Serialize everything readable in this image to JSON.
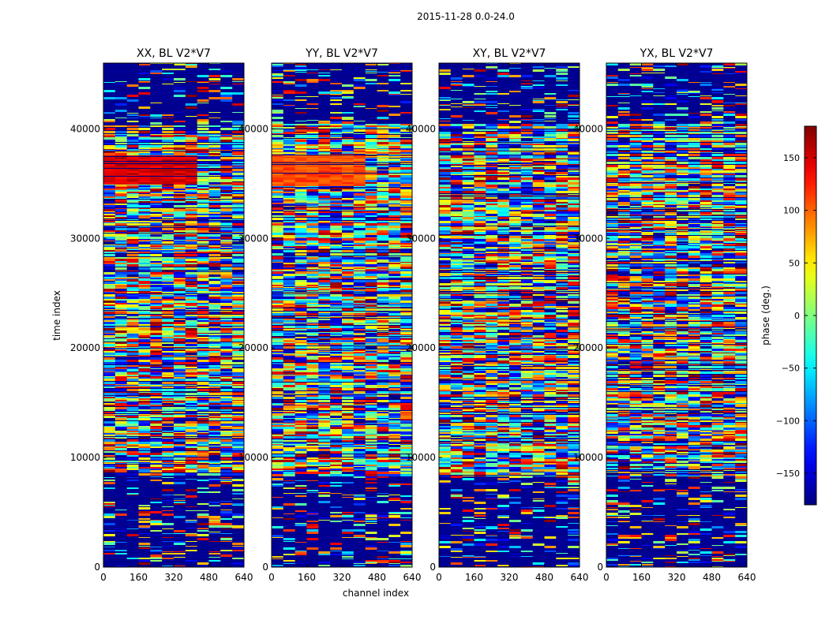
{
  "figure": {
    "suptitle": "2015-11-28 0.0-24.0"
  },
  "chart_data": {
    "type": "heatmap",
    "shared": {
      "xlabel": "channel index",
      "ylabel": "time index",
      "xlim": [
        0,
        640
      ],
      "ylim": [
        0,
        46000
      ],
      "xticks": [
        0,
        160,
        320,
        480,
        640
      ],
      "yticks": [
        0,
        10000,
        20000,
        30000,
        40000
      ]
    },
    "panels": [
      {
        "title": "XX, BL V2*V7"
      },
      {
        "title": "YY, BL V2*V7"
      },
      {
        "title": "XY, BL V2*V7"
      },
      {
        "title": "YX, BL V2*V7"
      }
    ],
    "colorbar": {
      "label": "phase (deg.)",
      "range": [
        -180,
        180
      ],
      "ticks": [
        -150,
        -100,
        -50,
        0,
        50,
        100,
        150
      ],
      "colormap": "jet"
    }
  }
}
